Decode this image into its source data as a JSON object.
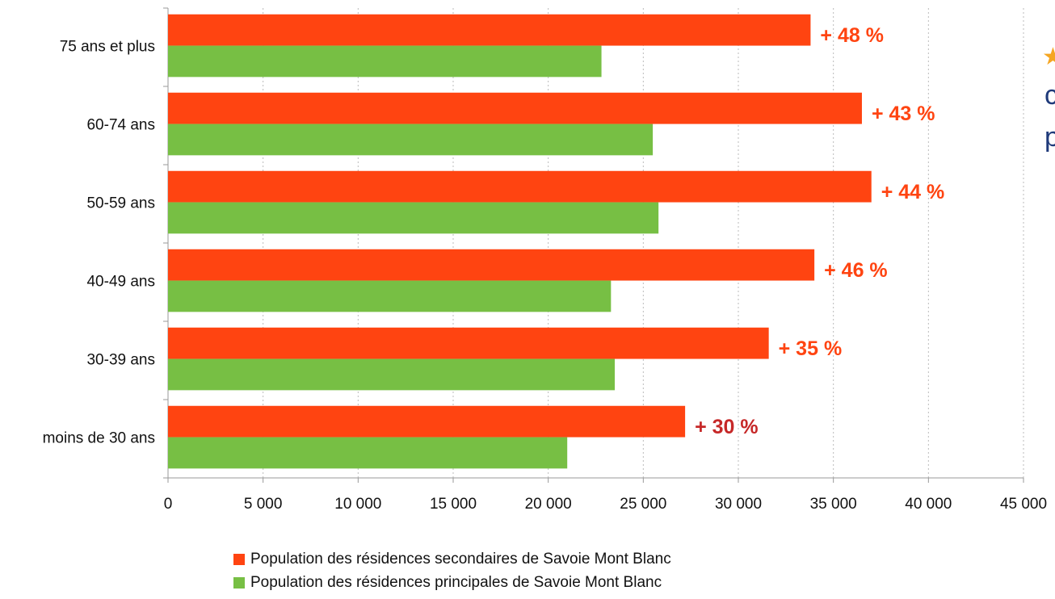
{
  "chart_data": {
    "type": "hbar",
    "categories": [
      "75 ans et plus",
      "60-74 ans",
      "50-59 ans",
      "40-49 ans",
      "30-39 ans",
      "moins de 30 ans"
    ],
    "series": [
      {
        "name": "Population des résidences secondaires de Savoie Mont Blanc",
        "color": "#ff4411",
        "values": [
          33800,
          36500,
          37000,
          34000,
          31600,
          27200
        ]
      },
      {
        "name": "Population des résidences principales de Savoie Mont Blanc",
        "color": "#77bf44",
        "values": [
          22800,
          25500,
          25800,
          23300,
          23500,
          21000
        ]
      }
    ],
    "annotations": [
      "+ 48 %",
      "+ 43 %",
      "+ 44 %",
      "+ 46 %",
      "+ 35 %",
      "+ 30 %"
    ],
    "annotation_colors": [
      "#ff4411",
      "#ff4411",
      "#ff4411",
      "#ff4411",
      "#ff4411",
      "#c62828"
    ],
    "xlim": [
      0,
      45000
    ],
    "xticks": [
      0,
      {
        "value": 5000,
        "label": "5 000"
      },
      {
        "value": 10000,
        "label": "10 000"
      },
      {
        "value": 15000,
        "label": "15 000"
      },
      {
        "value": 20000,
        "label": "20 000"
      },
      {
        "value": 25000,
        "label": "25 000"
      },
      {
        "value": 30000,
        "label": "30 000"
      },
      {
        "value": 35000,
        "label": "35 000"
      },
      {
        "value": 40000,
        "label": "40 000"
      },
      {
        "value": 45000,
        "label": "45 000"
      }
    ],
    "grid": true,
    "legend": "bottom",
    "side_text": [
      "c",
      "p"
    ]
  }
}
